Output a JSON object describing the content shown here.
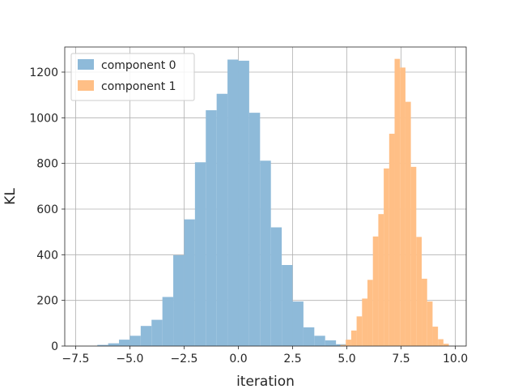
{
  "chart_data": {
    "type": "bar",
    "title": "",
    "xlabel": "iteration",
    "ylabel": "KL",
    "xlim": [
      -8.0,
      10.5
    ],
    "ylim": [
      0,
      1310
    ],
    "xticks": [
      -7.5,
      -5.0,
      -2.5,
      0.0,
      2.5,
      5.0,
      7.5,
      10.0
    ],
    "xtick_labels": [
      "−7.5",
      "−5.0",
      "−2.5",
      "0.0",
      "2.5",
      "5.0",
      "7.5",
      "10.0"
    ],
    "yticks": [
      0,
      200,
      400,
      600,
      800,
      1000,
      1200
    ],
    "ytick_labels": [
      "0",
      "200",
      "400",
      "600",
      "800",
      "1000",
      "1200"
    ],
    "grid": true,
    "legend": "top-left",
    "series": [
      {
        "name": "component 0",
        "color": "#8ebad9",
        "bins": [
          [
            -6.5,
            -6.0,
            5
          ],
          [
            -6.0,
            -5.5,
            12
          ],
          [
            -5.5,
            -5.0,
            28
          ],
          [
            -5.0,
            -4.5,
            45
          ],
          [
            -4.5,
            -4.0,
            88
          ],
          [
            -4.0,
            -3.5,
            115
          ],
          [
            -3.5,
            -3.0,
            215
          ],
          [
            -3.0,
            -2.5,
            398
          ],
          [
            -2.5,
            -2.0,
            555
          ],
          [
            -2.0,
            -1.5,
            805
          ],
          [
            -1.5,
            -1.0,
            1033
          ],
          [
            -1.0,
            -0.5,
            1105
          ],
          [
            -0.5,
            0.0,
            1255
          ],
          [
            0.0,
            0.5,
            1250
          ],
          [
            0.5,
            1.0,
            1022
          ],
          [
            1.0,
            1.5,
            812
          ],
          [
            1.5,
            2.0,
            520
          ],
          [
            2.0,
            2.5,
            355
          ],
          [
            2.5,
            3.0,
            195
          ],
          [
            3.0,
            3.5,
            82
          ],
          [
            3.5,
            4.0,
            45
          ],
          [
            4.0,
            4.5,
            25
          ],
          [
            4.5,
            5.0,
            8
          ]
        ]
      },
      {
        "name": "component 1",
        "color": "#ffbf86",
        "bins": [
          [
            4.7,
            4.95,
            5
          ],
          [
            4.95,
            5.2,
            28
          ],
          [
            5.2,
            5.45,
            68
          ],
          [
            5.45,
            5.7,
            130
          ],
          [
            5.7,
            5.95,
            208
          ],
          [
            5.95,
            6.2,
            290
          ],
          [
            6.2,
            6.45,
            480
          ],
          [
            6.45,
            6.7,
            578
          ],
          [
            6.7,
            6.95,
            778
          ],
          [
            6.95,
            7.2,
            930
          ],
          [
            7.2,
            7.45,
            1258
          ],
          [
            7.45,
            7.7,
            1220
          ],
          [
            7.7,
            7.95,
            1070
          ],
          [
            7.95,
            8.2,
            785
          ],
          [
            8.2,
            8.45,
            478
          ],
          [
            8.45,
            8.7,
            295
          ],
          [
            8.7,
            8.95,
            195
          ],
          [
            8.95,
            9.2,
            85
          ],
          [
            9.2,
            9.45,
            30
          ],
          [
            9.45,
            9.7,
            10
          ]
        ]
      }
    ]
  }
}
